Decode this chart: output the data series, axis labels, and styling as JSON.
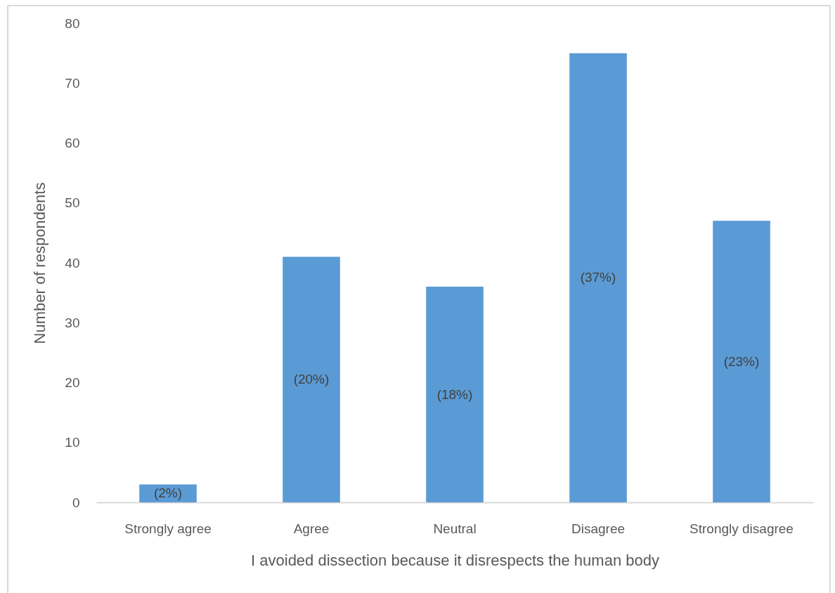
{
  "chart_data": {
    "type": "bar",
    "xlabel": "I avoided dissection because it disrespects the human body",
    "ylabel": "Number of respondents",
    "categories": [
      "Strongly agree",
      "Agree",
      "Neutral",
      "Disagree",
      "Strongly disagree"
    ],
    "values": [
      3,
      41,
      36,
      75,
      47
    ],
    "color": "#5b9bd5",
    "annotations": [
      "(2%)",
      "(20%)",
      "(18%)",
      "(37%)",
      "(23%)"
    ],
    "ylim": [
      0,
      80
    ],
    "yticks": [
      0,
      10,
      20,
      30,
      40,
      50,
      60,
      70,
      80
    ],
    "grid": false
  }
}
